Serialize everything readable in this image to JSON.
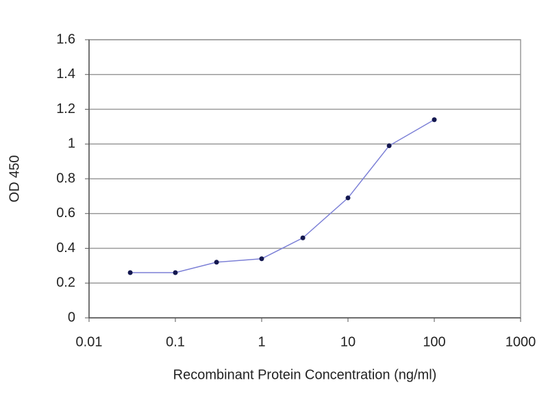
{
  "chart_data": {
    "type": "line",
    "x_label": "Recombinant Protein Concentration (ng/ml)",
    "y_label": "OD 450",
    "x": [
      0.03,
      0.1,
      0.3,
      1,
      3,
      10,
      30,
      100
    ],
    "values": [
      0.26,
      0.26,
      0.32,
      0.34,
      0.46,
      0.69,
      0.99,
      1.14
    ],
    "color": "#7b7fd6",
    "marker_color": "#141850",
    "xscale": "log",
    "xlim": [
      0.01,
      1000
    ],
    "xticks": [
      0.01,
      0.1,
      1,
      10,
      100,
      1000
    ],
    "ylim": [
      0,
      1.6
    ],
    "yticks": [
      0,
      0.2,
      0.4,
      0.6,
      0.8,
      1,
      1.2,
      1.4,
      1.6
    ],
    "grid": true
  }
}
